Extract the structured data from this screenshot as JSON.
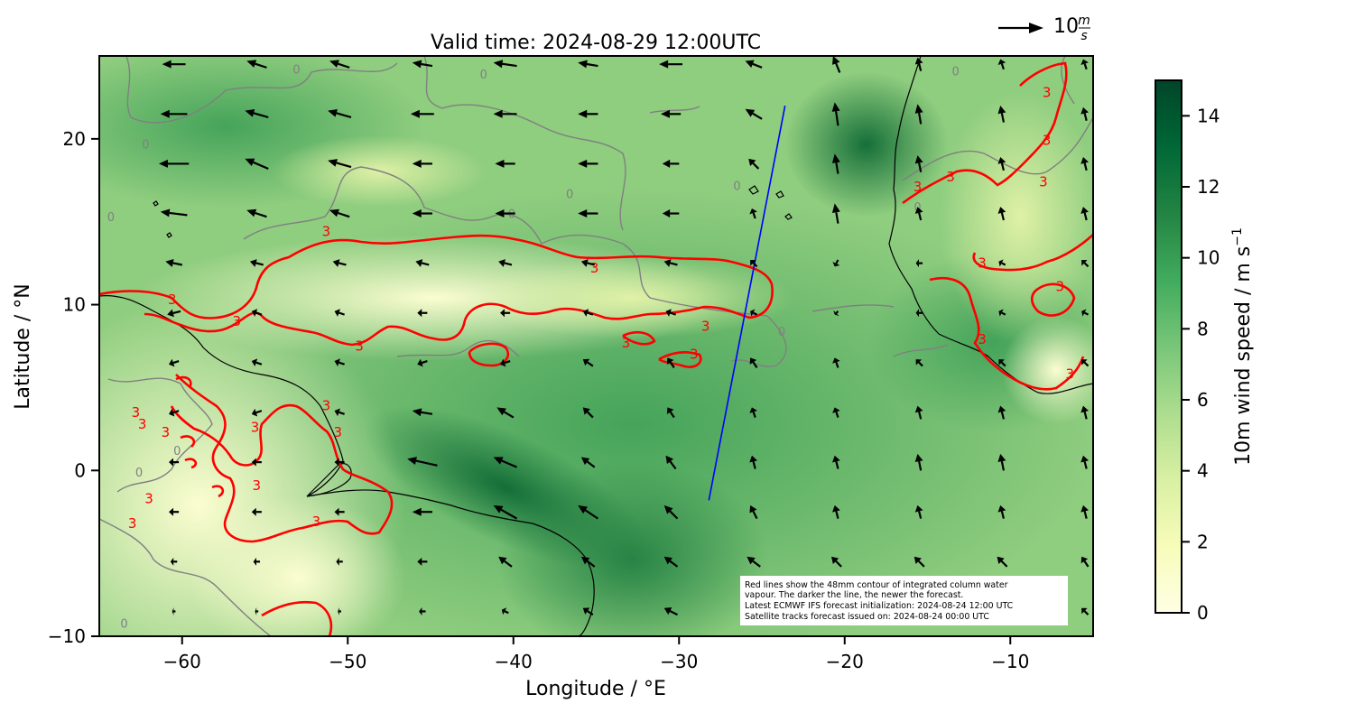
{
  "title": "Valid time: 2024-08-29 12:00UTC",
  "map": {
    "xlabel": "Longitude / °E",
    "ylabel": "Latitude / °N",
    "xlim": [
      -65,
      -5
    ],
    "ylim": [
      -10,
      25
    ],
    "xticks": [
      {
        "value": -60,
        "label": "−60"
      },
      {
        "value": -50,
        "label": "−50"
      },
      {
        "value": -40,
        "label": "−40"
      },
      {
        "value": -30,
        "label": "−30"
      },
      {
        "value": -20,
        "label": "−20"
      },
      {
        "value": -10,
        "label": "−10"
      }
    ],
    "yticks": [
      {
        "value": -10,
        "label": "−10"
      },
      {
        "value": 0,
        "label": "0"
      },
      {
        "value": 10,
        "label": "10"
      },
      {
        "value": 20,
        "label": "20"
      }
    ],
    "field": "10m wind speed",
    "satellite_track": {
      "color": "#0000ff",
      "lon": [
        -28.2,
        -23.6
      ],
      "lat": [
        -1.8,
        22.0
      ]
    },
    "contour_color": "#ff0000",
    "contour_label": "3",
    "contour_label_positions": [
      {
        "lon": -51.3,
        "lat": 14.4
      },
      {
        "lon": -60.6,
        "lat": 10.3
      },
      {
        "lon": -35.1,
        "lat": 12.2
      },
      {
        "lon": -28.4,
        "lat": 8.7
      },
      {
        "lon": -29.1,
        "lat": 7.0
      },
      {
        "lon": -33.2,
        "lat": 7.7
      },
      {
        "lon": -49.3,
        "lat": 7.5
      },
      {
        "lon": -51.3,
        "lat": 3.9
      },
      {
        "lon": -62.8,
        "lat": 3.5
      },
      {
        "lon": -62.4,
        "lat": 2.8
      },
      {
        "lon": -61.0,
        "lat": 2.3
      },
      {
        "lon": -55.6,
        "lat": 2.6
      },
      {
        "lon": -50.6,
        "lat": 2.3
      },
      {
        "lon": -62.0,
        "lat": -1.7
      },
      {
        "lon": -63.0,
        "lat": -3.2
      },
      {
        "lon": -55.5,
        "lat": -0.9
      },
      {
        "lon": -51.9,
        "lat": -3.1
      },
      {
        "lon": -65.3,
        "lat": 10.6
      },
      {
        "lon": -56.7,
        "lat": 9.0
      },
      {
        "lon": -7.8,
        "lat": 22.8
      },
      {
        "lon": -7.8,
        "lat": 19.9
      },
      {
        "lon": -8.0,
        "lat": 17.4
      },
      {
        "lon": -11.7,
        "lat": 12.5
      },
      {
        "lon": -7.0,
        "lat": 11.1
      },
      {
        "lon": -11.7,
        "lat": 7.9
      },
      {
        "lon": -6.4,
        "lat": 5.8
      },
      {
        "lon": -15.6,
        "lat": 17.1
      },
      {
        "lon": -13.6,
        "lat": 17.7
      }
    ],
    "grey_contour_label": "0",
    "grey_contour_label_positions": [
      {
        "lon": -64.3,
        "lat": 15.3
      },
      {
        "lon": -60.3,
        "lat": 1.2
      },
      {
        "lon": -62.6,
        "lat": -0.1
      },
      {
        "lon": -53.1,
        "lat": 24.2
      },
      {
        "lon": -41.8,
        "lat": 23.9
      },
      {
        "lon": -13.3,
        "lat": 24.1
      },
      {
        "lon": -15.6,
        "lat": 15.9
      },
      {
        "lon": -26.5,
        "lat": 17.2
      },
      {
        "lon": -40.1,
        "lat": 15.5
      },
      {
        "lon": -36.6,
        "lat": 16.7
      },
      {
        "lon": -62.2,
        "lat": 19.7
      },
      {
        "lon": -23.8,
        "lat": 8.4
      },
      {
        "lon": -63.5,
        "lat": -9.2
      }
    ]
  },
  "quiver_key": {
    "vector_m_s": 10,
    "label_main": "10",
    "label_num": "m",
    "label_den": "s"
  },
  "colorbar": {
    "label_main": "10m wind speed / m s",
    "label_sup": "−1",
    "range": [
      0,
      15
    ],
    "ticks": [
      {
        "value": 0,
        "label": "0"
      },
      {
        "value": 2,
        "label": "2"
      },
      {
        "value": 4,
        "label": "4"
      },
      {
        "value": 6,
        "label": "6"
      },
      {
        "value": 8,
        "label": "8"
      },
      {
        "value": 10,
        "label": "10"
      },
      {
        "value": 12,
        "label": "12"
      },
      {
        "value": 14,
        "label": "14"
      }
    ],
    "colors": [
      "#ffffe5",
      "#f7fcb9",
      "#d9f0a3",
      "#addd8e",
      "#78c679",
      "#41ab5d",
      "#238443",
      "#006837",
      "#004529"
    ]
  },
  "note": {
    "lines": [
      "Red lines show the 48mm contour of integrated column water",
      "vapour. The darker the line, the newer the forecast.",
      "Latest ECMWF IFS forecast initialization: 2024-08-24 12:00 UTC",
      "Satellite tracks forecast issued on: 2024-08-24 00:00 UTC"
    ]
  },
  "wind_field": {
    "lons": [
      -60.5,
      -55.5,
      -50.5,
      -45.5,
      -40.5,
      -35.5,
      -30.5,
      -25.5,
      -20.5,
      -15.5,
      -10.5,
      -5.5
    ],
    "lats": [
      24.5,
      21.5,
      18.5,
      15.5,
      12.5,
      9.5,
      6.5,
      3.5,
      0.5,
      -2.5,
      -5.5,
      -8.5
    ],
    "u": [
      [
        -7,
        -6,
        -6,
        -6,
        -7,
        -6,
        -7,
        -5,
        -2,
        -1,
        -1,
        -1
      ],
      [
        -8,
        -7,
        -7,
        -7,
        -7,
        -6,
        -6,
        -5,
        -1,
        -1,
        -1,
        -1
      ],
      [
        -9,
        -7,
        -7,
        -6,
        -6,
        -6,
        -5,
        -3,
        -1,
        -1,
        -1,
        -1
      ],
      [
        -8,
        -6,
        -6,
        -6,
        -6,
        -6,
        -5,
        -1,
        -1,
        -1,
        -1,
        -1
      ],
      [
        -5,
        -4,
        -4,
        -4,
        -4,
        -4,
        -4,
        -2,
        -1,
        -2,
        -2,
        -2
      ],
      [
        -4,
        -3,
        -3,
        -3,
        -3,
        -3,
        -3,
        -2,
        -1,
        -2,
        -2,
        -2
      ],
      [
        -3,
        -3,
        -3,
        -3,
        -3,
        -3,
        -2,
        -2,
        -1,
        -2,
        -2,
        -2
      ],
      [
        -3,
        -3,
        -3,
        -6,
        -5,
        -3,
        -2,
        -1,
        -1,
        -1,
        -1,
        -1
      ],
      [
        -3,
        -3,
        -3,
        -9,
        -7,
        -4,
        -3,
        -1,
        -1,
        -1,
        -1,
        -1
      ],
      [
        -3,
        -3,
        -3,
        -6,
        -7,
        -6,
        -4,
        -2,
        -1,
        -1,
        -1,
        -1
      ],
      [
        -2,
        -2,
        -2,
        -3,
        -4,
        -4,
        -4,
        -4,
        -3,
        -3,
        -3,
        -2
      ],
      [
        -1,
        -1,
        -1,
        -2,
        -2,
        -3,
        -4,
        -3,
        -3,
        -3,
        -2,
        -2
      ]
    ],
    "v": [
      [
        0,
        2,
        2,
        1,
        1,
        1,
        0,
        2,
        5,
        4,
        3,
        3
      ],
      [
        0,
        2,
        2,
        0,
        0,
        0,
        0,
        3,
        7,
        6,
        5,
        4
      ],
      [
        0,
        3,
        2,
        0,
        0,
        0,
        0,
        3,
        6,
        5,
        4,
        4
      ],
      [
        1,
        2,
        2,
        0,
        0,
        0,
        0,
        3,
        6,
        4,
        4,
        4
      ],
      [
        1,
        1,
        1,
        1,
        1,
        1,
        1,
        2,
        -2,
        0,
        1,
        2
      ],
      [
        -1,
        1,
        1,
        0,
        0,
        1,
        1,
        1,
        -1,
        0,
        1,
        1
      ],
      [
        -1,
        1,
        1,
        -1,
        -1,
        2,
        3,
        3,
        3,
        2,
        2,
        2
      ],
      [
        -1,
        -1,
        1,
        1,
        3,
        3,
        3,
        3,
        3,
        4,
        4,
        4
      ],
      [
        0,
        0,
        0,
        2,
        3,
        3,
        4,
        4,
        4,
        5,
        5,
        4
      ],
      [
        0,
        0,
        0,
        0,
        4,
        4,
        4,
        4,
        4,
        4,
        4,
        4
      ],
      [
        0,
        0,
        0,
        0,
        3,
        3,
        3,
        3,
        3,
        3,
        3,
        3
      ],
      [
        0,
        0,
        0,
        0,
        1,
        2,
        2,
        2,
        2,
        2,
        2,
        2
      ]
    ]
  }
}
